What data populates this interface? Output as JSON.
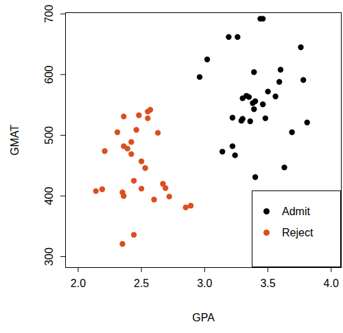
{
  "chart_data": {
    "type": "scatter",
    "x_label": "GPA",
    "y_label": "GMAT",
    "xlim": [
      1.9,
      4.08
    ],
    "ylim": [
      282,
      702
    ],
    "xticks": [
      {
        "value": 2,
        "label": "2.0"
      },
      {
        "value": 2.5,
        "label": "2.5"
      },
      {
        "value": 3,
        "label": "3.0"
      },
      {
        "value": 3.5,
        "label": "3.5"
      },
      {
        "value": 4,
        "label": "4.0"
      }
    ],
    "yticks": [
      300,
      400,
      500,
      600,
      700
    ],
    "grid": false,
    "legend": "bottom-right",
    "series": [
      {
        "name": "Admit",
        "color": "#000000",
        "x": [
          3.44,
          3.46,
          3.19,
          3.26,
          3.02,
          3.76,
          2.96,
          3.39,
          3.6,
          3.35,
          3.3,
          3.33,
          3.59,
          3.78,
          3.5,
          3.38,
          3.4,
          3.46,
          3.39,
          3.56,
          3.22,
          3.29,
          3.3,
          3.36,
          3.48,
          3.81,
          3.14,
          3.22,
          3.24,
          3.69,
          3.4,
          3.63
        ],
        "y": [
          692,
          692,
          662,
          662,
          625,
          645,
          596,
          604,
          608,
          563,
          561,
          565,
          588,
          591,
          572,
          553,
          556,
          551,
          543,
          564,
          529,
          524,
          527,
          523,
          528,
          521,
          473,
          482,
          467,
          505,
          431,
          447
        ]
      },
      {
        "name": "Reject",
        "color": "#DC4E1F",
        "x": [
          2.36,
          2.48,
          2.55,
          2.55,
          2.57,
          2.31,
          2.46,
          2.63,
          2.36,
          2.42,
          2.39,
          2.21,
          2.42,
          2.5,
          2.53,
          2.44,
          2.67,
          2.69,
          2.5,
          2.72,
          2.6,
          2.14,
          2.19,
          2.35,
          2.36,
          2.85,
          2.89,
          2.44,
          2.35
        ],
        "y": [
          531,
          533,
          528,
          539,
          542,
          505,
          509,
          504,
          482,
          489,
          478,
          474,
          469,
          457,
          446,
          425,
          420,
          413,
          412,
          399,
          394,
          408,
          411,
          406,
          400,
          381,
          384,
          336,
          321
        ]
      }
    ]
  }
}
